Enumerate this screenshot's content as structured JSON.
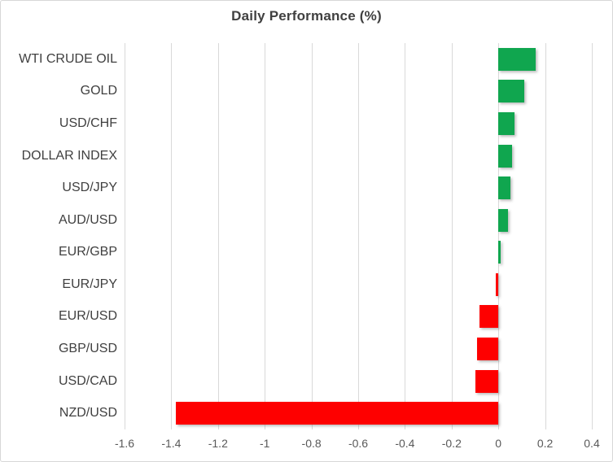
{
  "chart_data": {
    "type": "bar",
    "orientation": "horizontal",
    "title": "Daily Performance (%)",
    "categories": [
      "WTI CRUDE OIL",
      "GOLD",
      "USD/CHF",
      "DOLLAR INDEX",
      "USD/JPY",
      "AUD/USD",
      "EUR/GBP",
      "EUR/JPY",
      "EUR/USD",
      "GBP/USD",
      "USD/CAD",
      "NZD/USD"
    ],
    "values": [
      0.16,
      0.11,
      0.07,
      0.06,
      0.05,
      0.04,
      0.01,
      -0.01,
      -0.08,
      -0.09,
      -0.1,
      -1.38
    ],
    "xlabel": "",
    "ylabel": "",
    "xlim": [
      -1.6,
      0.4
    ],
    "xticks": [
      -1.6,
      -1.4,
      -1.2,
      -1,
      -0.8,
      -0.6,
      -0.4,
      -0.2,
      0,
      0.2,
      0.4
    ],
    "xtick_labels": [
      "-1.6",
      "-1.4",
      "-1.2",
      "-1",
      "-0.8",
      "-0.6",
      "-0.4",
      "-0.2",
      "0",
      "0.2",
      "0.4"
    ],
    "grid": "vertical",
    "legend": "none",
    "colors": {
      "positive": "#10a64f",
      "negative": "#fe0000",
      "gridline": "#d9d9d9",
      "title_text": "#404040",
      "category_text": "#404040",
      "tick_text": "#595959",
      "border": "#d7d7d7",
      "background": "#ffffff"
    }
  }
}
